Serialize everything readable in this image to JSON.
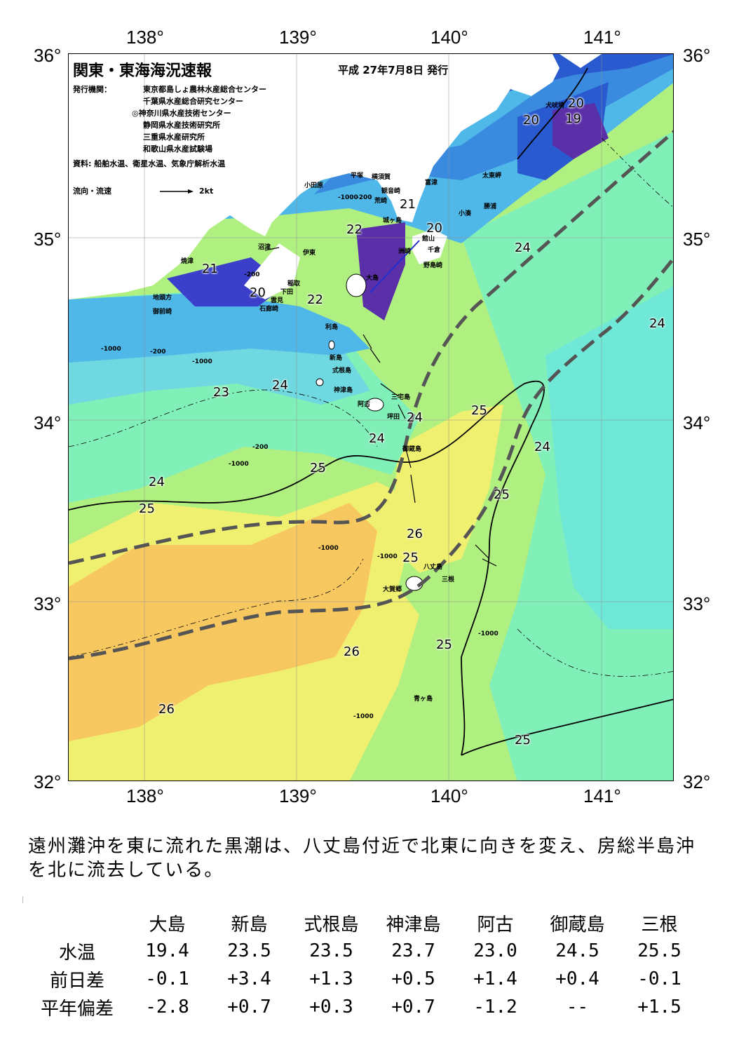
{
  "map": {
    "title": "関東・東海海況速報",
    "issue": "平成 27年7月8日 発行",
    "publisher_label": "発行機関：",
    "publishers": [
      "東京都島しょ農林水産総合センター",
      "千葉県水産総合研究センター",
      "◎神奈川県水産技術センター",
      "静岡県水産技術研究所",
      "三重県水産研究所",
      "和歌山県水産試験場"
    ],
    "source": "資料: 船舶水温、衛星水温、気象庁解析水温",
    "legend_label": "流向・流速",
    "legend_scale": "2kt",
    "lon_labels": [
      "138°",
      "139°",
      "140°",
      "141°"
    ],
    "lat_labels": [
      "36°",
      "35°",
      "34°",
      "33°",
      "32°"
    ],
    "place_names": [
      "平塚",
      "横須賀",
      "観音崎",
      "富津",
      "小田原",
      "荒崎",
      "城ヶ島",
      "太東岬",
      "勝浦",
      "小湊",
      "洲崎",
      "館山",
      "千倉",
      "野島崎",
      "沼津",
      "伊東",
      "大島",
      "稲取",
      "下田",
      "雲見",
      "石廊崎",
      "焼津",
      "地頭方",
      "御前崎",
      "犬吠埼",
      "利島",
      "新島",
      "式根島",
      "神津島",
      "三宅島",
      "阿古",
      "坪田",
      "御蔵島",
      "八丈島",
      "三根",
      "大賀郷",
      "青ヶ島"
    ],
    "isotherms": [
      "19",
      "20",
      "20",
      "20",
      "20",
      "21",
      "21",
      "22",
      "22",
      "23",
      "24",
      "24",
      "24",
      "24",
      "24",
      "24",
      "24",
      "25",
      "25",
      "25",
      "25",
      "25",
      "25",
      "25",
      "26",
      "26",
      "26"
    ],
    "depth_labels": [
      "-200",
      "-200",
      "-200",
      "-200",
      "-1000",
      "-1000",
      "-1000",
      "-1000",
      "-1000",
      "-1000",
      "-1000",
      "-1000"
    ]
  },
  "description": "遠州灘沖を東に流れた黒潮は、八丈島付近で北東に向きを変え、房総半島沖を北に流去している。",
  "table": {
    "stations": [
      "大島",
      "新島",
      "式根島",
      "神津島",
      "阿古",
      "御蔵島",
      "三根"
    ],
    "rows": [
      {
        "label": "水温",
        "values": [
          "19.4",
          "23.5",
          "23.5",
          "23.7",
          "23.0",
          "24.5",
          "25.5"
        ]
      },
      {
        "label": "前日差",
        "values": [
          "-0.1",
          "+3.4",
          "+1.3",
          "+0.5",
          "+1.4",
          "+0.4",
          "-0.1"
        ]
      },
      {
        "label": "平年偏差",
        "values": [
          "-2.8",
          "+0.7",
          "+0.3",
          "+0.7",
          "-1.2",
          "--",
          "+1.5"
        ]
      }
    ]
  },
  "colors": {
    "sst_19": "#5a2fa8",
    "sst_20": "#3b3fc9",
    "sst_21": "#2a5ad0",
    "sst_22": "#3a8ae0",
    "sst_23": "#4fb8e8",
    "sst_24": "#6fe0d0",
    "sst_24b": "#80f0b8",
    "sst_25": "#b0f080",
    "sst_25b": "#f0f070",
    "sst_26": "#f8c860",
    "land": "#ffffff",
    "kuroshio_axis": "#555555"
  }
}
